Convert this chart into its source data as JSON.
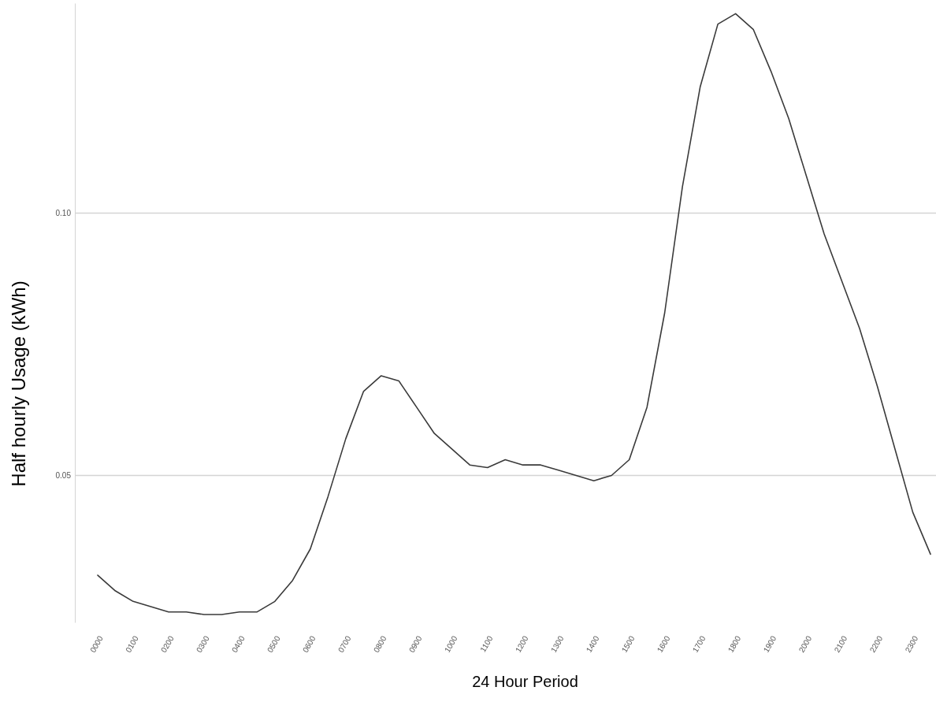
{
  "chart_data": {
    "type": "line",
    "xlabel": "24 Hour Period",
    "ylabel": "Half hourly Usage (kWh)",
    "categories": [
      "0000",
      null,
      "0100",
      null,
      "0200",
      null,
      "0300",
      null,
      "0400",
      null,
      "0500",
      null,
      "0600",
      null,
      "0700",
      null,
      "0800",
      null,
      "0900",
      null,
      "1000",
      null,
      "1100",
      null,
      "1200",
      null,
      "1300",
      null,
      "1400",
      null,
      "1500",
      null,
      "1600",
      null,
      "1700",
      null,
      "1800",
      null,
      "1900",
      null,
      "2000",
      null,
      "2100",
      null,
      "2200",
      null,
      "2300",
      null
    ],
    "series": [
      {
        "color": "#3a3a3a",
        "values": [
          0.031,
          0.028,
          0.026,
          0.025,
          0.024,
          0.024,
          0.0235,
          0.0235,
          0.024,
          0.024,
          0.026,
          0.03,
          0.036,
          0.046,
          0.057,
          0.066,
          0.069,
          0.068,
          0.063,
          0.058,
          0.055,
          0.052,
          0.0515,
          0.053,
          0.052,
          0.052,
          0.051,
          0.05,
          0.049,
          0.05,
          0.053,
          0.063,
          0.081,
          0.105,
          0.124,
          0.136,
          0.138,
          0.135,
          0.127,
          0.118,
          0.107,
          0.096,
          0.087,
          0.078,
          0.067,
          0.055,
          0.043,
          0.035
        ]
      }
    ],
    "ylim": [
      0.022,
      0.14
    ],
    "yticks": [
      {
        "value": 0.05,
        "label": "0.05"
      },
      {
        "value": 0.1,
        "label": "0.10"
      }
    ],
    "grid": "y",
    "marker": "none",
    "line_style": "solid"
  }
}
